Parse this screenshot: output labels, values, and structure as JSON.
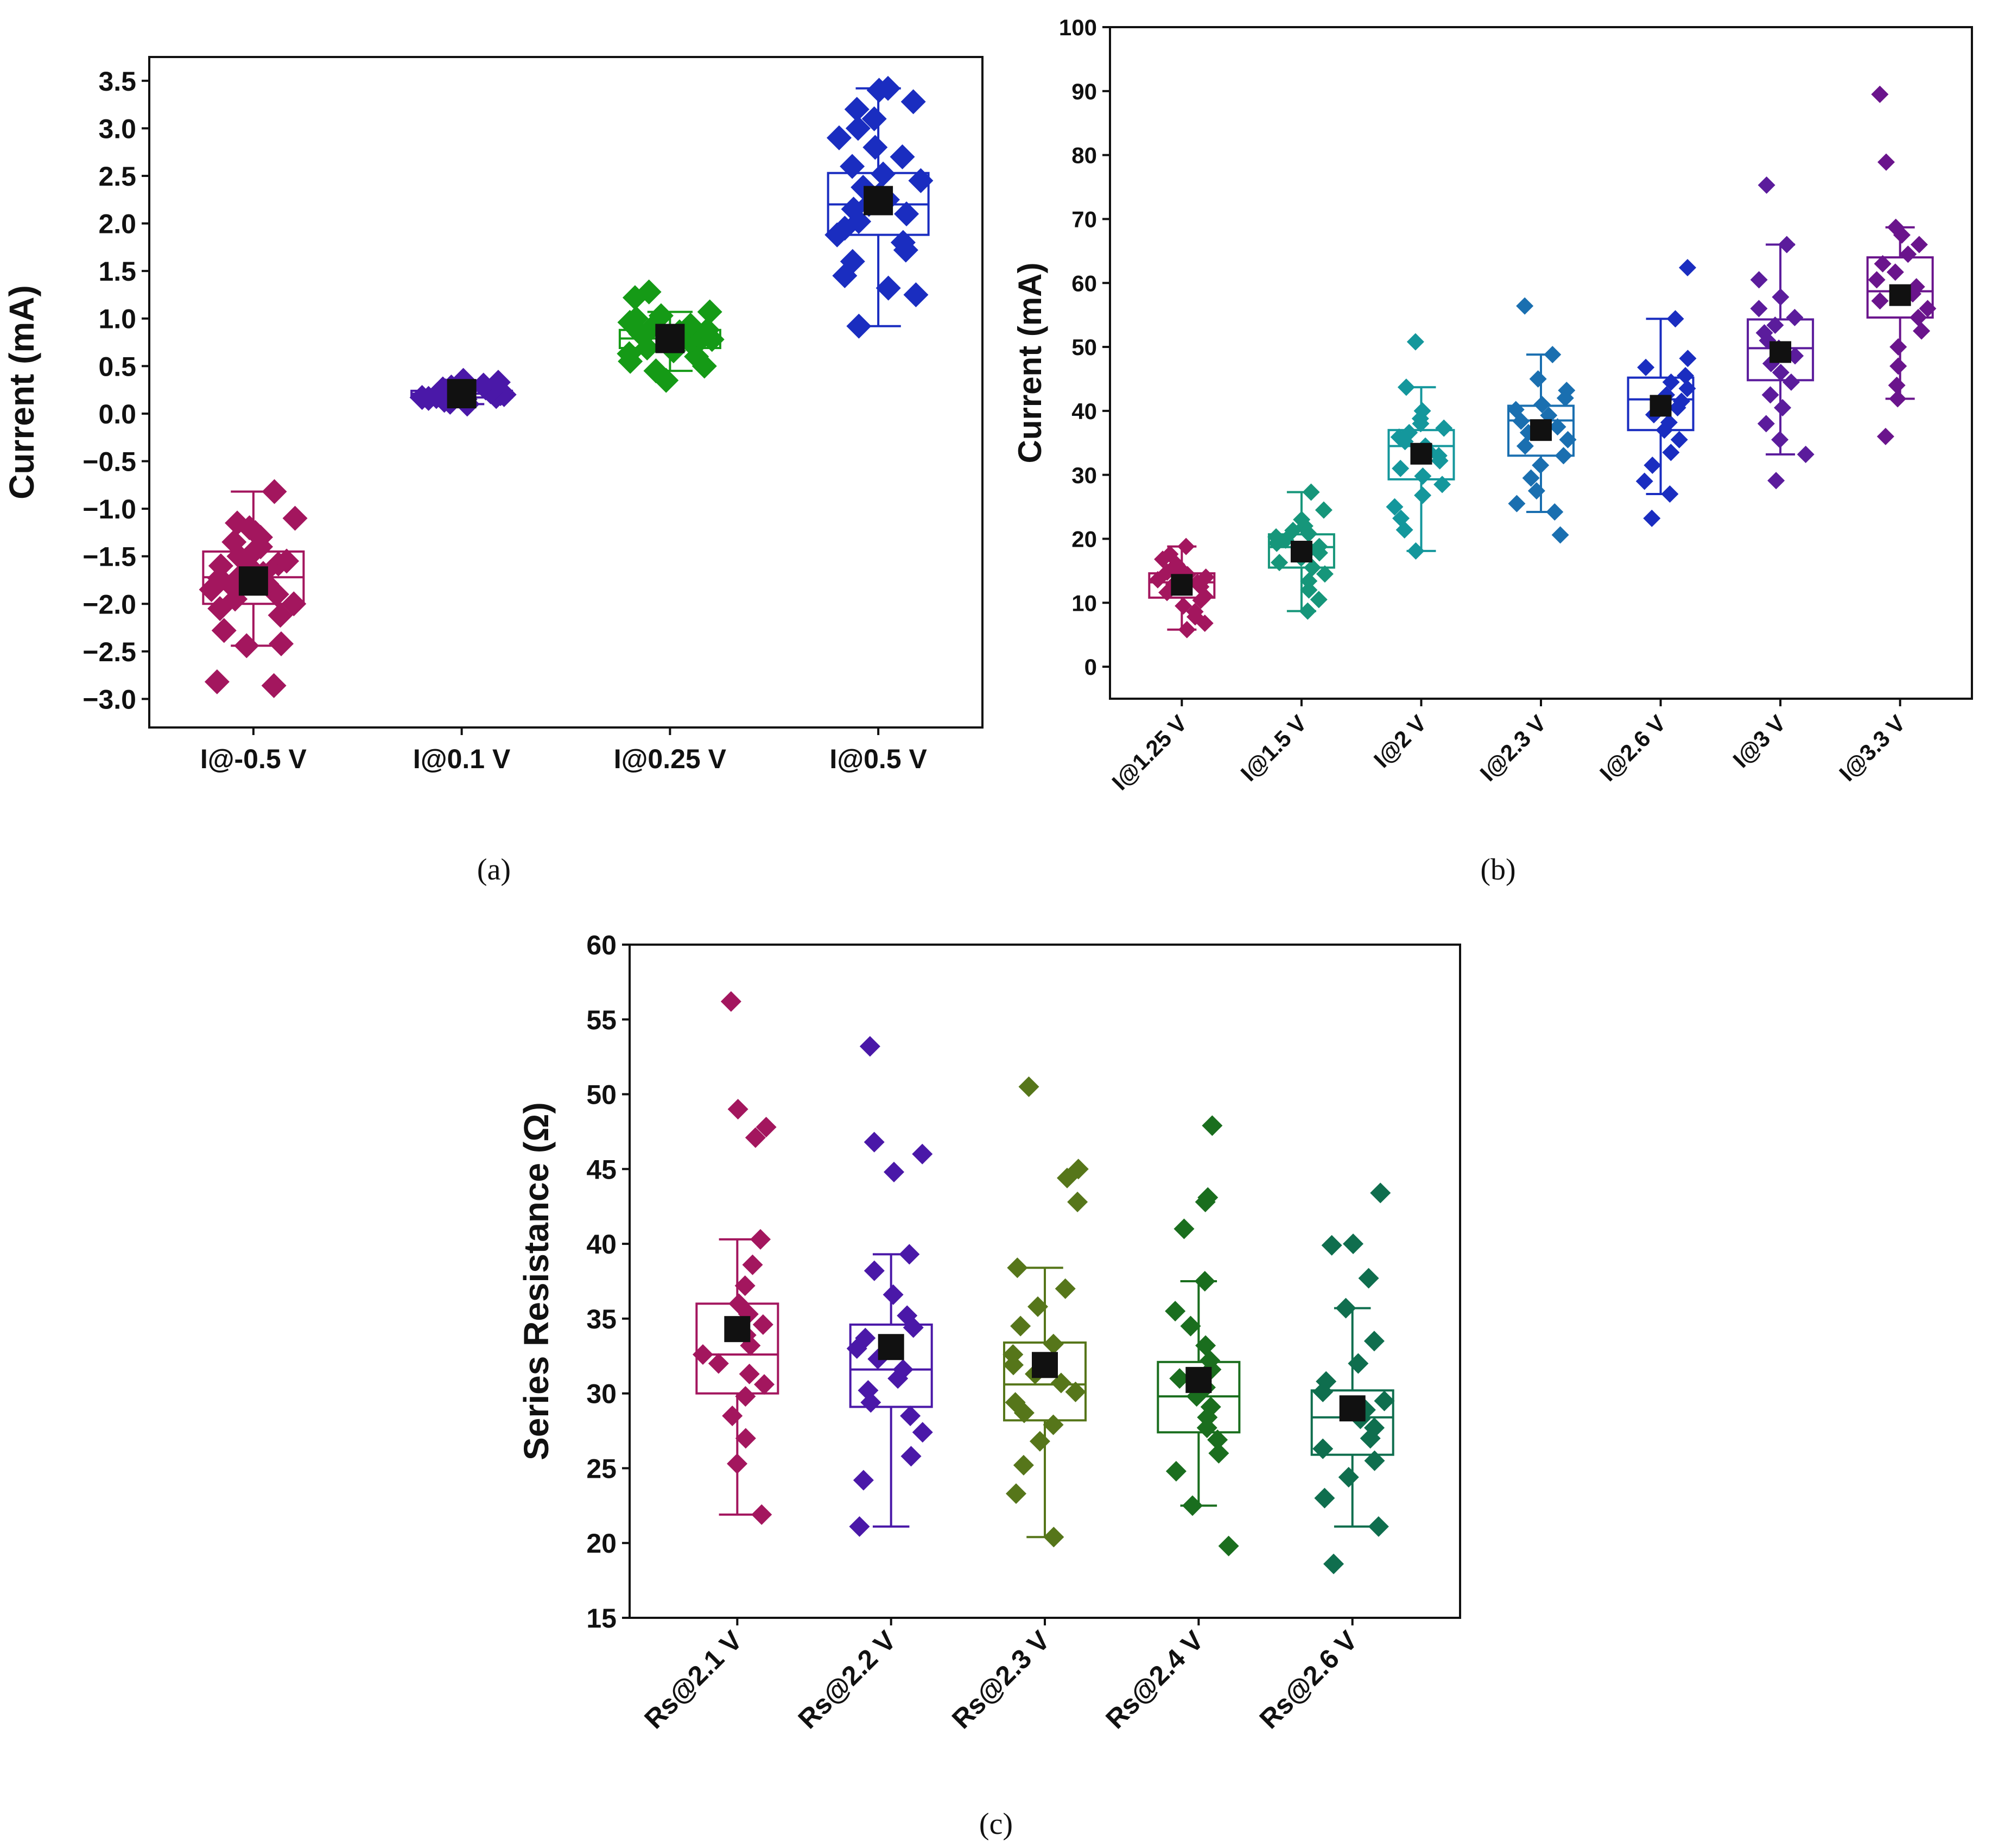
{
  "chart_data": [
    {
      "type": "box",
      "panel_label": "(a)",
      "ylabel": "Current (mA)",
      "ylim": [
        -3.3,
        3.75
      ],
      "yticks": [
        -3.0,
        -2.5,
        -2.0,
        -1.5,
        -1.0,
        -0.5,
        0.0,
        0.5,
        1.0,
        1.5,
        2.0,
        2.5,
        3.0,
        3.5
      ],
      "ytick_labels": [
        "−3.0",
        "−2.5",
        "−2.0",
        "−1.5",
        "−1.0",
        "−0.5",
        "0.0",
        "0.5",
        "1.0",
        "1.5",
        "2.0",
        "2.5",
        "3.0",
        "3.5"
      ],
      "categories": [
        "I@-0.5 V",
        "I@0.1 V",
        "I@0.25 V",
        "I@0.5 V"
      ],
      "tick_rotation": 0,
      "grid": false,
      "boxes": [
        {
          "color": "#a3165e",
          "q1": -2.0,
          "median": -1.72,
          "q3": -1.45,
          "whisker_low": -2.44,
          "whisker_high": -0.82,
          "mean": -1.76,
          "points": [
            -2.86,
            -2.82,
            -2.44,
            -2.42,
            -2.28,
            -2.12,
            -2.05,
            -2.0,
            -1.95,
            -1.9,
            -1.85,
            -1.82,
            -1.79,
            -1.76,
            -1.73,
            -1.7,
            -1.68,
            -1.65,
            -1.62,
            -1.6,
            -1.58,
            -1.55,
            -1.5,
            -1.45,
            -1.4,
            -1.35,
            -1.3,
            -1.25,
            -1.2,
            -1.15,
            -1.1,
            -0.82
          ]
        },
        {
          "color": "#4a18a8",
          "q1": 0.17,
          "median": 0.21,
          "q3": 0.24,
          "whisker_low": 0.1,
          "whisker_high": 0.3,
          "mean": 0.21,
          "points": [
            0.1,
            0.12,
            0.14,
            0.15,
            0.16,
            0.17,
            0.18,
            0.18,
            0.19,
            0.2,
            0.2,
            0.21,
            0.21,
            0.22,
            0.22,
            0.23,
            0.23,
            0.24,
            0.25,
            0.26,
            0.27,
            0.28,
            0.3,
            0.33,
            0.35
          ]
        },
        {
          "color": "#159a16",
          "q1": 0.69,
          "median": 0.79,
          "q3": 0.88,
          "whisker_low": 0.45,
          "whisker_high": 1.07,
          "mean": 0.79,
          "points": [
            0.35,
            0.45,
            0.5,
            0.55,
            0.6,
            0.63,
            0.66,
            0.69,
            0.72,
            0.74,
            0.76,
            0.78,
            0.8,
            0.82,
            0.84,
            0.86,
            0.88,
            0.9,
            0.93,
            0.96,
            1.0,
            1.03,
            1.07,
            1.22,
            1.28
          ]
        },
        {
          "color": "#1a2dc0",
          "q1": 1.88,
          "median": 2.2,
          "q3": 2.53,
          "whisker_low": 0.92,
          "whisker_high": 3.42,
          "mean": 2.24,
          "points": [
            0.92,
            1.25,
            1.32,
            1.45,
            1.6,
            1.72,
            1.8,
            1.88,
            1.95,
            2.02,
            2.1,
            2.15,
            2.2,
            2.25,
            2.3,
            2.38,
            2.45,
            2.52,
            2.6,
            2.7,
            2.8,
            2.9,
            3.0,
            3.1,
            3.2,
            3.28,
            3.42,
            3.4
          ]
        }
      ]
    },
    {
      "type": "box",
      "panel_label": "(b)",
      "ylabel": "Current (mA)",
      "ylim": [
        -5,
        100
      ],
      "yticks": [
        0,
        10,
        20,
        30,
        40,
        50,
        60,
        70,
        80,
        90,
        100
      ],
      "ytick_labels": [
        "0",
        "10",
        "20",
        "30",
        "40",
        "50",
        "60",
        "70",
        "80",
        "90",
        "100"
      ],
      "categories": [
        "I@1.25 V",
        "I@1.5 V",
        "I@2 V",
        "I@2.3 V",
        "I@2.6 V",
        "I@3 V",
        "I@3.3 V"
      ],
      "tick_rotation": -45,
      "grid": false,
      "boxes": [
        {
          "color": "#a3165e",
          "q1": 10.8,
          "median": 13.2,
          "q3": 14.6,
          "whisker_low": 5.8,
          "whisker_high": 18.8,
          "mean": 12.8,
          "points": [
            5.8,
            6.8,
            7.8,
            8.6,
            9.5,
            10.4,
            11.0,
            11.6,
            12.1,
            12.5,
            12.9,
            13.2,
            13.6,
            14.0,
            14.4,
            14.8,
            15.3,
            16.0,
            16.8,
            17.6,
            18.8
          ]
        },
        {
          "color": "#16967a",
          "q1": 15.5,
          "median": 18.7,
          "q3": 20.7,
          "whisker_low": 8.7,
          "whisker_high": 27.3,
          "mean": 18.0,
          "points": [
            8.7,
            10.5,
            12.0,
            13.4,
            14.5,
            15.5,
            16.3,
            17.0,
            17.8,
            18.3,
            18.8,
            19.3,
            19.8,
            20.3,
            20.8,
            21.3,
            22.0,
            23.0,
            24.5,
            27.3
          ]
        },
        {
          "color": "#14979c",
          "q1": 29.3,
          "median": 34.5,
          "q3": 37.0,
          "whisker_low": 18.1,
          "whisker_high": 43.7,
          "mean": 33.3,
          "points": [
            18.1,
            21.4,
            23.2,
            25.0,
            26.8,
            28.5,
            29.8,
            31.0,
            32.2,
            33.0,
            33.8,
            34.5,
            35.2,
            35.9,
            36.6,
            37.3,
            38.0,
            38.8,
            40.0,
            43.7,
            50.8
          ]
        },
        {
          "color": "#1a6fb0",
          "q1": 33.0,
          "median": 38.5,
          "q3": 40.8,
          "whisker_low": 24.2,
          "whisker_high": 48.8,
          "mean": 37.0,
          "points": [
            20.6,
            24.2,
            25.5,
            27.5,
            29.5,
            31.5,
            33.0,
            34.5,
            35.5,
            36.6,
            37.5,
            38.4,
            39.3,
            40.2,
            41.0,
            42.0,
            43.2,
            45.0,
            48.8,
            56.4
          ]
        },
        {
          "color": "#1a2dc0",
          "q1": 37.0,
          "median": 41.8,
          "q3": 45.2,
          "whisker_low": 27.0,
          "whisker_high": 54.4,
          "mean": 40.8,
          "points": [
            23.2,
            27.0,
            29.0,
            31.5,
            33.5,
            35.5,
            37.0,
            38.2,
            39.4,
            40.5,
            41.5,
            42.5,
            43.5,
            44.5,
            45.5,
            46.8,
            48.2,
            54.4,
            62.4
          ]
        },
        {
          "color": "#5b1c9c",
          "q1": 44.8,
          "median": 49.8,
          "q3": 54.3,
          "whisker_low": 33.2,
          "whisker_high": 66.0,
          "mean": 49.2,
          "points": [
            29.1,
            33.2,
            35.5,
            38.0,
            40.5,
            42.5,
            44.5,
            46.0,
            47.4,
            48.6,
            49.8,
            51.0,
            52.2,
            53.4,
            54.6,
            56.0,
            57.8,
            60.5,
            66.0,
            75.3
          ]
        },
        {
          "color": "#6a148c",
          "q1": 54.6,
          "median": 58.7,
          "q3": 64.0,
          "whisker_low": 41.9,
          "whisker_high": 68.7,
          "mean": 58.1,
          "points": [
            36.0,
            41.9,
            44.0,
            47.0,
            50.0,
            52.5,
            54.6,
            56.0,
            57.2,
            58.3,
            59.4,
            60.5,
            61.7,
            63.0,
            64.5,
            66.0,
            67.5,
            68.7,
            78.9,
            89.5
          ]
        }
      ]
    },
    {
      "type": "box",
      "panel_label": "(c)",
      "ylabel": "Series Resistance (Ω)",
      "ylim": [
        15,
        60
      ],
      "yticks": [
        15,
        20,
        25,
        30,
        35,
        40,
        45,
        50,
        55,
        60
      ],
      "ytick_labels": [
        "15",
        "20",
        "25",
        "30",
        "35",
        "40",
        "45",
        "50",
        "55",
        "60"
      ],
      "categories": [
        "Rs@2.1 V",
        "Rs@2.2 V",
        "Rs@2.3 V",
        "Rs@2.4 V",
        "Rs@2.6 V"
      ],
      "tick_rotation": -45,
      "grid": false,
      "boxes": [
        {
          "color": "#a3165e",
          "q1": 30.0,
          "median": 32.6,
          "q3": 36.0,
          "whisker_low": 21.9,
          "whisker_high": 40.3,
          "mean": 34.3,
          "points": [
            21.9,
            25.3,
            27.0,
            28.5,
            29.8,
            30.6,
            31.3,
            32.0,
            32.6,
            33.2,
            33.9,
            34.6,
            35.3,
            36.0,
            37.2,
            38.6,
            40.3,
            47.1,
            47.8,
            49.0,
            56.2
          ]
        },
        {
          "color": "#4a18a8",
          "q1": 29.1,
          "median": 31.6,
          "q3": 34.6,
          "whisker_low": 21.1,
          "whisker_high": 39.3,
          "mean": 33.1,
          "points": [
            21.1,
            24.2,
            25.8,
            27.4,
            28.5,
            29.4,
            30.2,
            31.0,
            31.6,
            32.3,
            33.0,
            33.7,
            34.4,
            35.2,
            36.6,
            38.2,
            39.3,
            44.8,
            46.0,
            46.8,
            53.2
          ]
        },
        {
          "color": "#56761a",
          "q1": 28.2,
          "median": 30.6,
          "q3": 33.4,
          "whisker_low": 20.4,
          "whisker_high": 38.4,
          "mean": 31.9,
          "points": [
            20.4,
            23.3,
            25.2,
            26.8,
            27.9,
            28.7,
            29.4,
            30.1,
            30.7,
            31.3,
            31.9,
            32.6,
            33.3,
            34.5,
            35.8,
            37.0,
            38.4,
            42.8,
            44.4,
            45.0,
            50.5
          ]
        },
        {
          "color": "#1a6e1e",
          "q1": 27.4,
          "median": 29.8,
          "q3": 32.1,
          "whisker_low": 22.5,
          "whisker_high": 37.5,
          "mean": 30.9,
          "points": [
            19.8,
            22.5,
            24.8,
            26.0,
            26.9,
            27.7,
            28.4,
            29.1,
            29.8,
            30.4,
            31.0,
            31.6,
            32.2,
            33.2,
            34.5,
            35.5,
            37.5,
            41.0,
            42.8,
            43.1,
            47.9
          ]
        },
        {
          "color": "#0f6e4e",
          "q1": 25.9,
          "median": 28.4,
          "q3": 30.2,
          "whisker_low": 21.1,
          "whisker_high": 35.7,
          "mean": 29.0,
          "points": [
            18.6,
            21.1,
            23.0,
            24.4,
            25.5,
            26.3,
            27.0,
            27.7,
            28.3,
            28.9,
            29.5,
            30.1,
            30.8,
            32.0,
            33.5,
            35.7,
            37.7,
            39.9,
            40.0,
            43.4
          ]
        }
      ]
    }
  ]
}
